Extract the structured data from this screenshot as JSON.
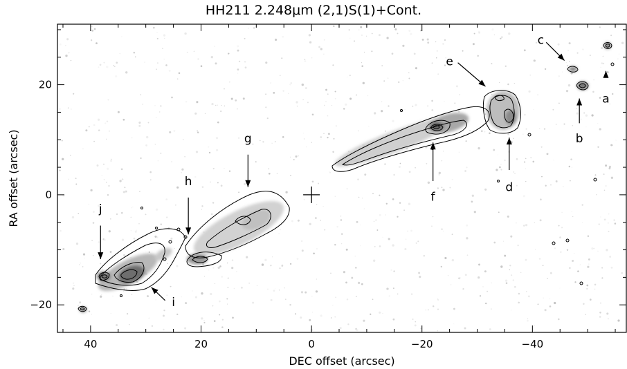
{
  "figure": {
    "title": "HH211 2.248μm (2,1)S(1)+Cont.",
    "xlabel": "DEC offset (arcsec)",
    "ylabel": "RA offset (arcsec)",
    "xlim": [
      46,
      -57
    ],
    "ylim": [
      -25,
      31
    ],
    "x_ticks": [
      40,
      20,
      0,
      -20,
      -40
    ],
    "y_ticks": [
      20,
      0,
      -20
    ],
    "x_tick_labels": [
      "40",
      "20",
      "0",
      "−20",
      "−40"
    ],
    "y_tick_labels": [
      "20",
      "0",
      "−20"
    ],
    "knots": [
      {
        "label": "a",
        "x": -53.3,
        "y": 17.5,
        "arrow_from": [
          -53.3,
          21.3
        ],
        "arrow_to": [
          -53.3,
          22.5
        ]
      },
      {
        "label": "b",
        "x": -48.5,
        "y": 10.3,
        "arrow_from": [
          -48.5,
          13.0
        ],
        "arrow_to": [
          -48.5,
          17.5
        ]
      },
      {
        "label": "c",
        "x": -41.5,
        "y": 28.2,
        "arrow_from": [
          -42.5,
          27.7
        ],
        "arrow_to": [
          -45.8,
          24.4
        ]
      },
      {
        "label": "d",
        "x": -35.8,
        "y": 1.4,
        "arrow_from": [
          -35.8,
          4.5
        ],
        "arrow_to": [
          -35.8,
          10.4
        ]
      },
      {
        "label": "e",
        "x": -25.0,
        "y": 24.3,
        "arrow_from": [
          -26.5,
          24.0
        ],
        "arrow_to": [
          -31.5,
          19.7
        ]
      },
      {
        "label": "f",
        "x": -22.0,
        "y": -0.3,
        "arrow_from": [
          -22.0,
          2.5
        ],
        "arrow_to": [
          -22.0,
          9.5
        ]
      },
      {
        "label": "g",
        "x": 11.5,
        "y": 10.3,
        "arrow_from": [
          11.5,
          7.3
        ],
        "arrow_to": [
          11.5,
          1.4
        ]
      },
      {
        "label": "h",
        "x": 22.3,
        "y": 2.5,
        "arrow_from": [
          22.3,
          -0.5
        ],
        "arrow_to": [
          22.3,
          -7.2
        ]
      },
      {
        "label": "i",
        "x": 25.0,
        "y": -19.5,
        "arrow_from": [
          26.5,
          -19.2
        ],
        "arrow_to": [
          29.0,
          -16.8
        ]
      },
      {
        "label": "j",
        "x": 38.2,
        "y": -2.5,
        "arrow_from": [
          38.2,
          -5.6
        ],
        "arrow_to": [
          38.2,
          -11.7
        ]
      }
    ],
    "origin_marker": [
      0,
      0
    ],
    "colors": {
      "ink": "#000000",
      "emission": "#7a7a7a",
      "background": "#ffffff"
    }
  }
}
